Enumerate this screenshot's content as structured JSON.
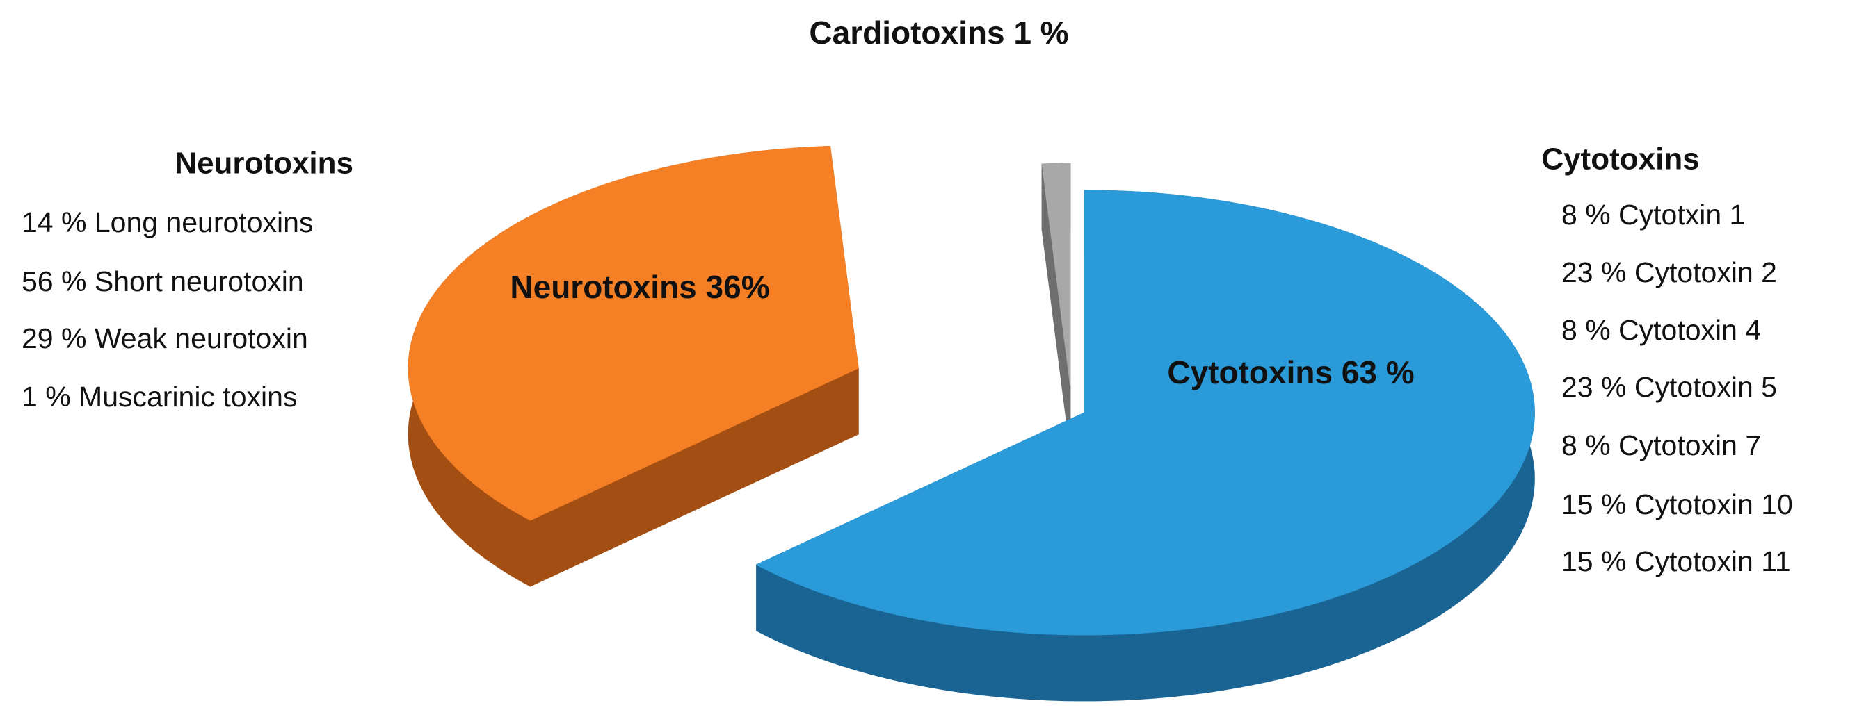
{
  "chart_data": {
    "type": "pie",
    "values": [
      63,
      36,
      1
    ],
    "value_labels": [
      "Cytotoxins 63 %",
      "Neurotoxins 36%",
      "Cardiotoxins 1 %"
    ],
    "colors": [
      "#2a9ad8",
      "#f47f25",
      "#a8a8a8"
    ],
    "side_colors": [
      "#1a6494",
      "#a34e12",
      "#6e6e6e"
    ],
    "breakdowns": [
      {
        "title": "Neurotoxins",
        "items": [
          "14 % Long neurotoxins",
          "56 % Short neurotoxin",
          "29 % Weak neurotoxin",
          "1 % Muscarinic toxins"
        ]
      },
      {
        "title": "Cytotoxins",
        "items": [
          "8 % Cytotxin 1",
          "23 % Cytotoxin 2",
          "8 % Cytotoxin 4",
          "23 % Cytotoxin 5",
          "8 % Cytotoxin 7",
          "15 % Cytotoxin 10",
          "15 % Cytotoxin 11"
        ]
      }
    ]
  }
}
